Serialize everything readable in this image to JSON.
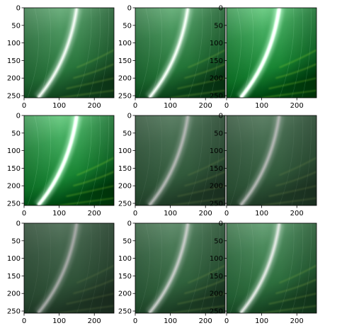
{
  "chart_data": {
    "type": "image-grid",
    "rows": 3,
    "cols": 3,
    "image_size": [
      256,
      256
    ],
    "xlim": [
      0,
      256
    ],
    "ylim": [
      256,
      0
    ],
    "xticks": [
      0,
      100,
      200
    ],
    "yticks": [
      0,
      50,
      100,
      150,
      200,
      250
    ],
    "grid": false,
    "panels": [
      {
        "brightness": 1.0,
        "contrast": 1.0,
        "saturation": 1.0
      },
      {
        "brightness": 1.0,
        "contrast": 1.05,
        "saturation": 1.0
      },
      {
        "brightness": 1.12,
        "contrast": 1.1,
        "saturation": 1.15
      },
      {
        "brightness": 1.12,
        "contrast": 1.1,
        "saturation": 1.15
      },
      {
        "brightness": 0.78,
        "contrast": 0.85,
        "saturation": 0.8
      },
      {
        "brightness": 0.78,
        "contrast": 0.85,
        "saturation": 0.8
      },
      {
        "brightness": 0.72,
        "contrast": 0.85,
        "saturation": 0.75
      },
      {
        "brightness": 0.85,
        "contrast": 0.9,
        "saturation": 0.85
      },
      {
        "brightness": 0.95,
        "contrast": 0.95,
        "saturation": 0.95
      }
    ]
  }
}
